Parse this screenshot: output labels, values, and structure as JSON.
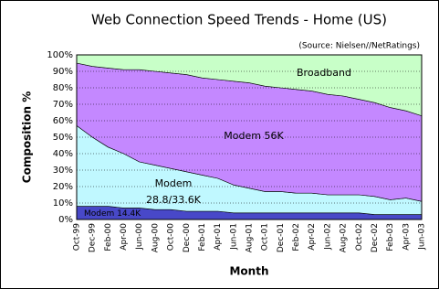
{
  "chart_data": {
    "type": "stacked_area",
    "title": "Web Connection Speed Trends - Home (US)",
    "subtitle": "(Source: Nielsen//NetRatings)",
    "x_label": "Month",
    "y_label": "Composition %",
    "categories": [
      "Oct-99",
      "Dec-99",
      "Feb-00",
      "Apr-00",
      "Jun-00",
      "Aug-00",
      "Oct-00",
      "Dec-00",
      "Feb-01",
      "Apr-01",
      "Jun-01",
      "Aug-01",
      "Oct-01",
      "Dec-01",
      "Feb-02",
      "Apr-02",
      "Jun-02",
      "Aug-02",
      "Oct-02",
      "Dec-02",
      "Feb-03",
      "Apr-03",
      "Jun-03"
    ],
    "series": [
      {
        "name": "Modem 14.4K",
        "color": "#4848c8",
        "values": [
          8,
          8,
          8,
          7,
          7,
          6,
          6,
          5,
          5,
          5,
          4,
          4,
          4,
          4,
          4,
          4,
          4,
          4,
          4,
          3,
          3,
          3,
          3
        ]
      },
      {
        "name": "Modem 28.8/33.6K",
        "color": "#c0f8ff",
        "values": [
          49,
          42,
          36,
          33,
          28,
          27,
          25,
          24,
          22,
          20,
          17,
          15,
          13,
          13,
          12,
          12,
          11,
          11,
          11,
          11,
          9,
          10,
          8
        ]
      },
      {
        "name": "Modem 56K",
        "color": "#c488ff",
        "values": [
          38,
          43,
          48,
          51,
          56,
          57,
          58,
          59,
          59,
          60,
          63,
          64,
          64,
          63,
          63,
          62,
          61,
          60,
          58,
          57,
          56,
          53,
          52
        ]
      },
      {
        "name": "Broadband",
        "color": "#c8ffc8",
        "values": [
          5,
          7,
          8,
          9,
          9,
          10,
          11,
          12,
          14,
          15,
          16,
          17,
          19,
          20,
          21,
          22,
          24,
          25,
          27,
          29,
          32,
          34,
          37
        ]
      }
    ],
    "ylim": [
      0,
      100
    ],
    "yticks": [
      {
        "value": 0,
        "label": "0%"
      },
      {
        "value": 10,
        "label": "10%"
      },
      {
        "value": 20,
        "label": "20%"
      },
      {
        "value": 30,
        "label": "30%"
      },
      {
        "value": 40,
        "label": "40%"
      },
      {
        "value": 50,
        "label": "50%"
      },
      {
        "value": 60,
        "label": "60%"
      },
      {
        "value": 70,
        "label": "70%"
      },
      {
        "value": 80,
        "label": "80%"
      },
      {
        "value": 90,
        "label": "90%"
      },
      {
        "value": 100,
        "label": "100%"
      }
    ],
    "grid": true
  }
}
